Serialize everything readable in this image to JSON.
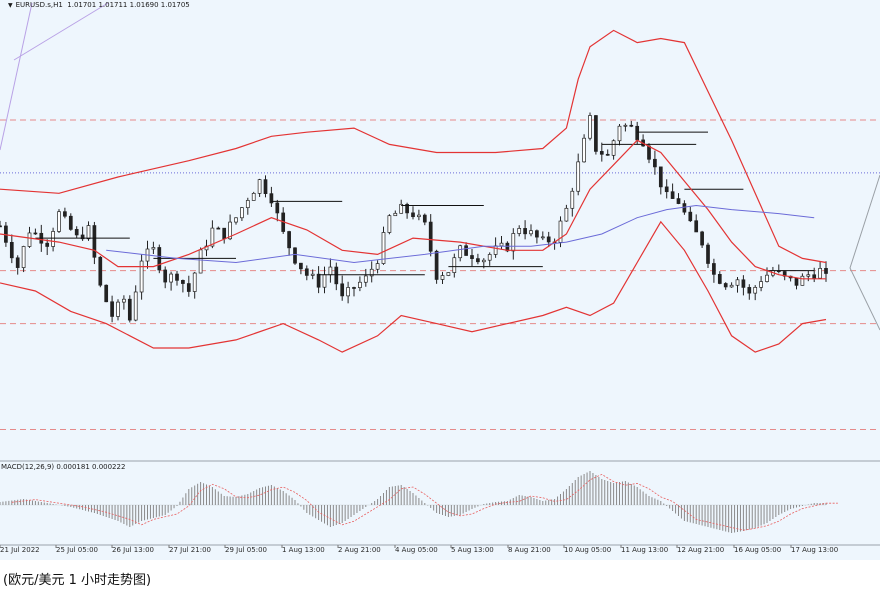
{
  "header": {
    "symbol": "EURUSD.s,H1",
    "ohlc": "1.01701 1.01711 1.01690 1.01705"
  },
  "macd_label": "MACD(12,26,9) 0.000181 0.000222",
  "caption": "(欧元/美元 1 小时走势图)",
  "colors": {
    "background": "#eef6fd",
    "candles": "#222222",
    "bollinger": "#e33434",
    "moving_average": "#6b6bd8",
    "levels": "#e58a8a",
    "macd_hist": "#8a8a8a",
    "macd_signal": "#e86060"
  },
  "chart_data": {
    "type": "candlestick",
    "x_tick_labels": [
      "21 Jul 2022",
      "25 Jul 05:00",
      "26 Jul 13:00",
      "27 Jul 21:00",
      "29 Jul 05:00",
      "1 Aug 13:00",
      "2 Aug 21:00",
      "4 Aug 05:00",
      "5 Aug 13:00",
      "8 Aug 21:00",
      "10 Aug 05:00",
      "11 Aug 13:00",
      "12 Aug 21:00",
      "16 Aug 05:00",
      "17 Aug 13:00"
    ],
    "price_path": [
      [
        0,
        1.0235
      ],
      [
        3,
        1.0185
      ],
      [
        5,
        1.023
      ],
      [
        8,
        1.0215
      ],
      [
        10,
        1.025
      ],
      [
        13,
        1.022
      ],
      [
        15,
        1.023
      ],
      [
        17,
        1.016
      ],
      [
        19,
        1.0125
      ],
      [
        21,
        1.0145
      ],
      [
        22,
        1.012
      ],
      [
        24,
        1.0195
      ],
      [
        26,
        1.0205
      ],
      [
        28,
        1.017
      ],
      [
        30,
        1.0175
      ],
      [
        32,
        1.0155
      ],
      [
        34,
        1.02
      ],
      [
        36,
        1.023
      ],
      [
        38,
        1.0225
      ],
      [
        40,
        1.0245
      ],
      [
        42,
        1.027
      ],
      [
        44,
        1.029
      ],
      [
        46,
        1.027
      ],
      [
        48,
        1.0225
      ],
      [
        50,
        1.0195
      ],
      [
        52,
        1.0175
      ],
      [
        54,
        1.0165
      ],
      [
        56,
        1.0185
      ],
      [
        58,
        1.0145
      ],
      [
        60,
        1.016
      ],
      [
        62,
        1.017
      ],
      [
        64,
        1.0195
      ],
      [
        66,
        1.0245
      ],
      [
        68,
        1.0255
      ],
      [
        70,
        1.025
      ],
      [
        72,
        1.0235
      ],
      [
        74,
        1.0175
      ],
      [
        76,
        1.018
      ],
      [
        78,
        1.0205
      ],
      [
        80,
        1.02
      ],
      [
        82,
        1.0195
      ],
      [
        84,
        1.0205
      ],
      [
        86,
        1.021
      ],
      [
        88,
        1.0235
      ],
      [
        90,
        1.0225
      ],
      [
        92,
        1.0215
      ],
      [
        94,
        1.022
      ],
      [
        96,
        1.0255
      ],
      [
        98,
        1.031
      ],
      [
        100,
        1.0365
      ],
      [
        101,
        1.033
      ],
      [
        103,
        1.032
      ],
      [
        105,
        1.036
      ],
      [
        107,
        1.0355
      ],
      [
        109,
        1.034
      ],
      [
        111,
        1.0305
      ],
      [
        113,
        1.027
      ],
      [
        115,
        1.0265
      ],
      [
        117,
        1.0235
      ],
      [
        119,
        1.0215
      ],
      [
        121,
        1.0175
      ],
      [
        123,
        1.0165
      ],
      [
        125,
        1.017
      ],
      [
        127,
        1.015
      ],
      [
        129,
        1.017
      ],
      [
        131,
        1.018
      ],
      [
        133,
        1.017
      ],
      [
        135,
        1.0165
      ],
      [
        137,
        1.0175
      ],
      [
        139,
        1.018
      ],
      [
        140,
        1.017
      ]
    ],
    "bollinger_upper": [
      [
        0,
        1.028
      ],
      [
        10,
        1.0275
      ],
      [
        20,
        1.0295
      ],
      [
        26,
        1.0305
      ],
      [
        32,
        1.0315
      ],
      [
        40,
        1.033
      ],
      [
        46,
        1.0345
      ],
      [
        52,
        1.035
      ],
      [
        60,
        1.0355
      ],
      [
        66,
        1.0335
      ],
      [
        74,
        1.0325
      ],
      [
        84,
        1.0325
      ],
      [
        92,
        1.033
      ],
      [
        96,
        1.0355
      ],
      [
        98,
        1.0415
      ],
      [
        100,
        1.0455
      ],
      [
        104,
        1.0475
      ],
      [
        108,
        1.046
      ],
      [
        112,
        1.0465
      ],
      [
        116,
        1.046
      ],
      [
        120,
        1.04
      ],
      [
        124,
        1.034
      ],
      [
        128,
        1.0275
      ],
      [
        132,
        1.021
      ],
      [
        136,
        1.0195
      ],
      [
        140,
        1.019
      ]
    ],
    "bollinger_middle": [
      [
        0,
        1.0225
      ],
      [
        10,
        1.0215
      ],
      [
        16,
        1.0205
      ],
      [
        20,
        1.0185
      ],
      [
        26,
        1.0185
      ],
      [
        32,
        1.02
      ],
      [
        40,
        1.0225
      ],
      [
        46,
        1.0245
      ],
      [
        52,
        1.023
      ],
      [
        58,
        1.0205
      ],
      [
        64,
        1.02
      ],
      [
        70,
        1.022
      ],
      [
        78,
        1.0215
      ],
      [
        86,
        1.0205
      ],
      [
        92,
        1.0205
      ],
      [
        96,
        1.0225
      ],
      [
        100,
        1.028
      ],
      [
        104,
        1.031
      ],
      [
        108,
        1.034
      ],
      [
        112,
        1.0325
      ],
      [
        116,
        1.029
      ],
      [
        120,
        1.0255
      ],
      [
        124,
        1.0215
      ],
      [
        128,
        1.0185
      ],
      [
        132,
        1.0175
      ],
      [
        136,
        1.017
      ],
      [
        140,
        1.017
      ]
    ],
    "bollinger_lower": [
      [
        0,
        1.0165
      ],
      [
        6,
        1.0155
      ],
      [
        12,
        1.013
      ],
      [
        18,
        1.0115
      ],
      [
        22,
        1.01
      ],
      [
        26,
        1.0085
      ],
      [
        32,
        1.0085
      ],
      [
        40,
        1.0095
      ],
      [
        48,
        1.0115
      ],
      [
        54,
        1.0095
      ],
      [
        58,
        1.008
      ],
      [
        64,
        1.01
      ],
      [
        68,
        1.0125
      ],
      [
        74,
        1.0115
      ],
      [
        80,
        1.0105
      ],
      [
        86,
        1.0115
      ],
      [
        92,
        1.0125
      ],
      [
        96,
        1.0135
      ],
      [
        100,
        1.0125
      ],
      [
        104,
        1.014
      ],
      [
        108,
        1.019
      ],
      [
        112,
        1.024
      ],
      [
        116,
        1.0205
      ],
      [
        120,
        1.0155
      ],
      [
        124,
        1.01
      ],
      [
        128,
        1.008
      ],
      [
        132,
        1.009
      ],
      [
        136,
        1.0115
      ],
      [
        140,
        1.012
      ]
    ],
    "moving_average": [
      [
        18,
        1.0205
      ],
      [
        30,
        1.0195
      ],
      [
        40,
        1.019
      ],
      [
        50,
        1.02
      ],
      [
        60,
        1.019
      ],
      [
        72,
        1.02
      ],
      [
        82,
        1.021
      ],
      [
        90,
        1.021
      ],
      [
        96,
        1.0215
      ],
      [
        102,
        1.0225
      ],
      [
        108,
        1.0245
      ],
      [
        113,
        1.0255
      ],
      [
        118,
        1.026
      ],
      [
        124,
        1.0255
      ],
      [
        132,
        1.025
      ],
      [
        138,
        1.0245
      ]
    ],
    "horizontal_levels": [
      {
        "price": 1.0365,
        "style": "dashed"
      },
      {
        "price": 1.03,
        "style": "dotted"
      },
      {
        "price": 1.018,
        "style": "dashed"
      },
      {
        "price": 1.0115,
        "style": "dashed"
      },
      {
        "price": 0.9985,
        "style": "dashed"
      }
    ],
    "macd_histogram": [
      [
        0,
        0.3
      ],
      [
        4,
        0.6
      ],
      [
        8,
        0.2
      ],
      [
        12,
        -0.2
      ],
      [
        16,
        -0.8
      ],
      [
        20,
        -1.6
      ],
      [
        22,
        -2.2
      ],
      [
        24,
        -1.6
      ],
      [
        28,
        -1.0
      ],
      [
        30,
        -0.1
      ],
      [
        32,
        1.6
      ],
      [
        34,
        2.3
      ],
      [
        36,
        1.8
      ],
      [
        38,
        0.9
      ],
      [
        40,
        0.8
      ],
      [
        42,
        1.1
      ],
      [
        44,
        1.7
      ],
      [
        46,
        2.0
      ],
      [
        48,
        1.4
      ],
      [
        50,
        0.5
      ],
      [
        52,
        -0.8
      ],
      [
        54,
        -1.5
      ],
      [
        56,
        -2.2
      ],
      [
        58,
        -1.8
      ],
      [
        60,
        -1.0
      ],
      [
        62,
        -0.2
      ],
      [
        64,
        0.6
      ],
      [
        66,
        1.8
      ],
      [
        68,
        2.0
      ],
      [
        70,
        1.2
      ],
      [
        72,
        0.2
      ],
      [
        74,
        -0.8
      ],
      [
        76,
        -1.2
      ],
      [
        78,
        -1.0
      ],
      [
        80,
        -0.4
      ],
      [
        82,
        0.1
      ],
      [
        84,
        0.3
      ],
      [
        86,
        0.4
      ],
      [
        88,
        1.0
      ],
      [
        90,
        0.8
      ],
      [
        92,
        0.4
      ],
      [
        94,
        0.6
      ],
      [
        96,
        1.6
      ],
      [
        98,
        2.8
      ],
      [
        100,
        3.4
      ],
      [
        102,
        2.6
      ],
      [
        104,
        2.2
      ],
      [
        106,
        2.4
      ],
      [
        108,
        1.8
      ],
      [
        110,
        0.9
      ],
      [
        112,
        0.4
      ],
      [
        114,
        -0.6
      ],
      [
        116,
        -1.6
      ],
      [
        118,
        -1.9
      ],
      [
        120,
        -2.2
      ],
      [
        122,
        -2.5
      ],
      [
        124,
        -2.8
      ],
      [
        126,
        -2.6
      ],
      [
        128,
        -2.3
      ],
      [
        130,
        -1.8
      ],
      [
        132,
        -1.0
      ],
      [
        134,
        -0.4
      ],
      [
        136,
        -0.1
      ],
      [
        138,
        0.2
      ],
      [
        140,
        0.2
      ]
    ]
  }
}
